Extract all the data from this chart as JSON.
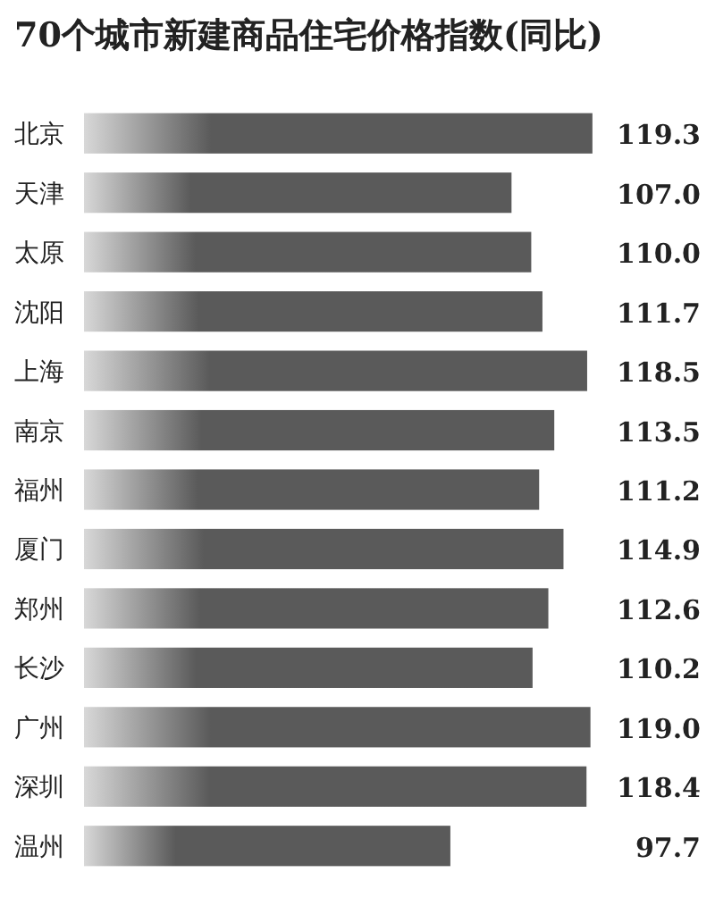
{
  "chart_data": {
    "type": "bar",
    "orientation": "horizontal",
    "title": "70个城市新建商品住宅价格指数(同比)",
    "categories": [
      "北京",
      "天津",
      "太原",
      "沈阳",
      "上海",
      "南京",
      "福州",
      "厦门",
      "郑州",
      "长沙",
      "广州",
      "深圳",
      "温州"
    ],
    "values": [
      119.3,
      107.0,
      110.0,
      111.7,
      118.5,
      113.5,
      111.2,
      114.9,
      112.6,
      110.2,
      119.0,
      118.4,
      97.7
    ],
    "value_labels": [
      "119.3",
      "107.0",
      "110.0",
      "111.7",
      "118.5",
      "113.5",
      "111.2",
      "114.9",
      "112.6",
      "110.2",
      "119.0",
      "118.4",
      "97.7"
    ],
    "color": "#5a5a5a",
    "xlim": [
      42,
      120
    ],
    "tick_labels": "y"
  }
}
